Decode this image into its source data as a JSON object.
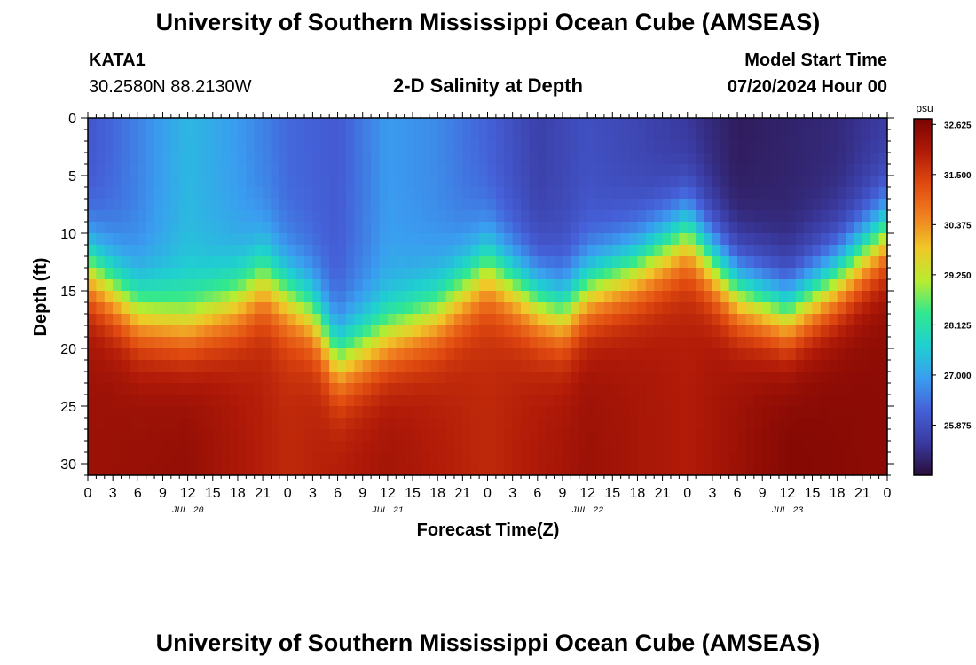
{
  "header": {
    "title": "University of Southern Mississippi Ocean Cube (AMSEAS)",
    "station": "KATA1",
    "coords": "30.2580N  88.2130W",
    "plot_title": "2-D Salinity at Depth",
    "start_label": "Model Start Time",
    "start_value": "07/20/2024 Hour 00"
  },
  "footer": {
    "title": "University of Southern Mississippi Ocean Cube (AMSEAS)"
  },
  "chart_data": {
    "type": "heatmap",
    "title": "2-D Salinity at Depth",
    "xlabel": "Forecast Time(Z)",
    "ylabel": "Depth (ft)",
    "ylim": [
      0,
      31
    ],
    "y_ticks": [
      0,
      5,
      10,
      15,
      20,
      25,
      30
    ],
    "x_hours_range": [
      0,
      96
    ],
    "x_ticks": [
      "0",
      "3",
      "6",
      "9",
      "12",
      "15",
      "18",
      "21",
      "0",
      "3",
      "6",
      "9",
      "12",
      "15",
      "18",
      "21",
      "0",
      "3",
      "6",
      "9",
      "12",
      "15",
      "18",
      "21",
      "0",
      "3",
      "6",
      "9",
      "12",
      "15",
      "18",
      "21",
      "0"
    ],
    "date_labels": [
      {
        "label": "JUL 20",
        "hour": 12
      },
      {
        "label": "JUL 21",
        "hour": 36
      },
      {
        "label": "JUL 22",
        "hour": 60
      },
      {
        "label": "JUL 23",
        "hour": 84
      }
    ],
    "colorbar": {
      "unit": "psu",
      "range": [
        24.75,
        32.75
      ],
      "ticks": [
        "32.625",
        "31.500",
        "30.375",
        "29.250",
        "28.125",
        "27.000",
        "25.875"
      ],
      "colors": [
        "#2a0d3a",
        "#3a3aa0",
        "#4560d8",
        "#3a9ef0",
        "#1fd0d0",
        "#30e890",
        "#b8ec30",
        "#f0c828",
        "#f08020",
        "#e04a10",
        "#b01a08",
        "#7a0403"
      ]
    },
    "surface_salinity_psu": [
      {
        "hour": 0,
        "value": 26.0
      },
      {
        "hour": 6,
        "value": 26.6
      },
      {
        "hour": 12,
        "value": 27.3
      },
      {
        "hour": 18,
        "value": 26.9
      },
      {
        "hour": 24,
        "value": 26.3
      },
      {
        "hour": 30,
        "value": 26.1
      },
      {
        "hour": 36,
        "value": 26.9
      },
      {
        "hour": 42,
        "value": 26.7
      },
      {
        "hour": 48,
        "value": 26.2
      },
      {
        "hour": 54,
        "value": 25.6
      },
      {
        "hour": 60,
        "value": 25.9
      },
      {
        "hour": 66,
        "value": 25.7
      },
      {
        "hour": 72,
        "value": 25.4
      },
      {
        "hour": 78,
        "value": 25.0
      },
      {
        "hour": 84,
        "value": 25.1
      },
      {
        "hour": 90,
        "value": 25.2
      },
      {
        "hour": 96,
        "value": 25.5
      }
    ],
    "halocline_depth_ft": [
      {
        "hour": 0,
        "value": 13
      },
      {
        "hour": 6,
        "value": 17
      },
      {
        "hour": 12,
        "value": 18
      },
      {
        "hour": 18,
        "value": 16
      },
      {
        "hour": 21,
        "value": 14
      },
      {
        "hour": 27,
        "value": 17
      },
      {
        "hour": 30,
        "value": 21
      },
      {
        "hour": 36,
        "value": 19
      },
      {
        "hour": 42,
        "value": 17
      },
      {
        "hour": 48,
        "value": 13
      },
      {
        "hour": 54,
        "value": 16
      },
      {
        "hour": 57,
        "value": 17
      },
      {
        "hour": 60,
        "value": 15
      },
      {
        "hour": 66,
        "value": 13
      },
      {
        "hour": 72,
        "value": 10
      },
      {
        "hour": 78,
        "value": 15
      },
      {
        "hour": 84,
        "value": 17
      },
      {
        "hour": 90,
        "value": 14
      },
      {
        "hour": 96,
        "value": 10
      }
    ],
    "bottom_salinity_psu": [
      {
        "hour": 0,
        "value": 32.3
      },
      {
        "hour": 12,
        "value": 32.4
      },
      {
        "hour": 24,
        "value": 31.8
      },
      {
        "hour": 36,
        "value": 32.2
      },
      {
        "hour": 48,
        "value": 31.8
      },
      {
        "hour": 60,
        "value": 32.3
      },
      {
        "hour": 72,
        "value": 32.0
      },
      {
        "hour": 84,
        "value": 32.6
      },
      {
        "hour": 96,
        "value": 32.5
      }
    ]
  }
}
